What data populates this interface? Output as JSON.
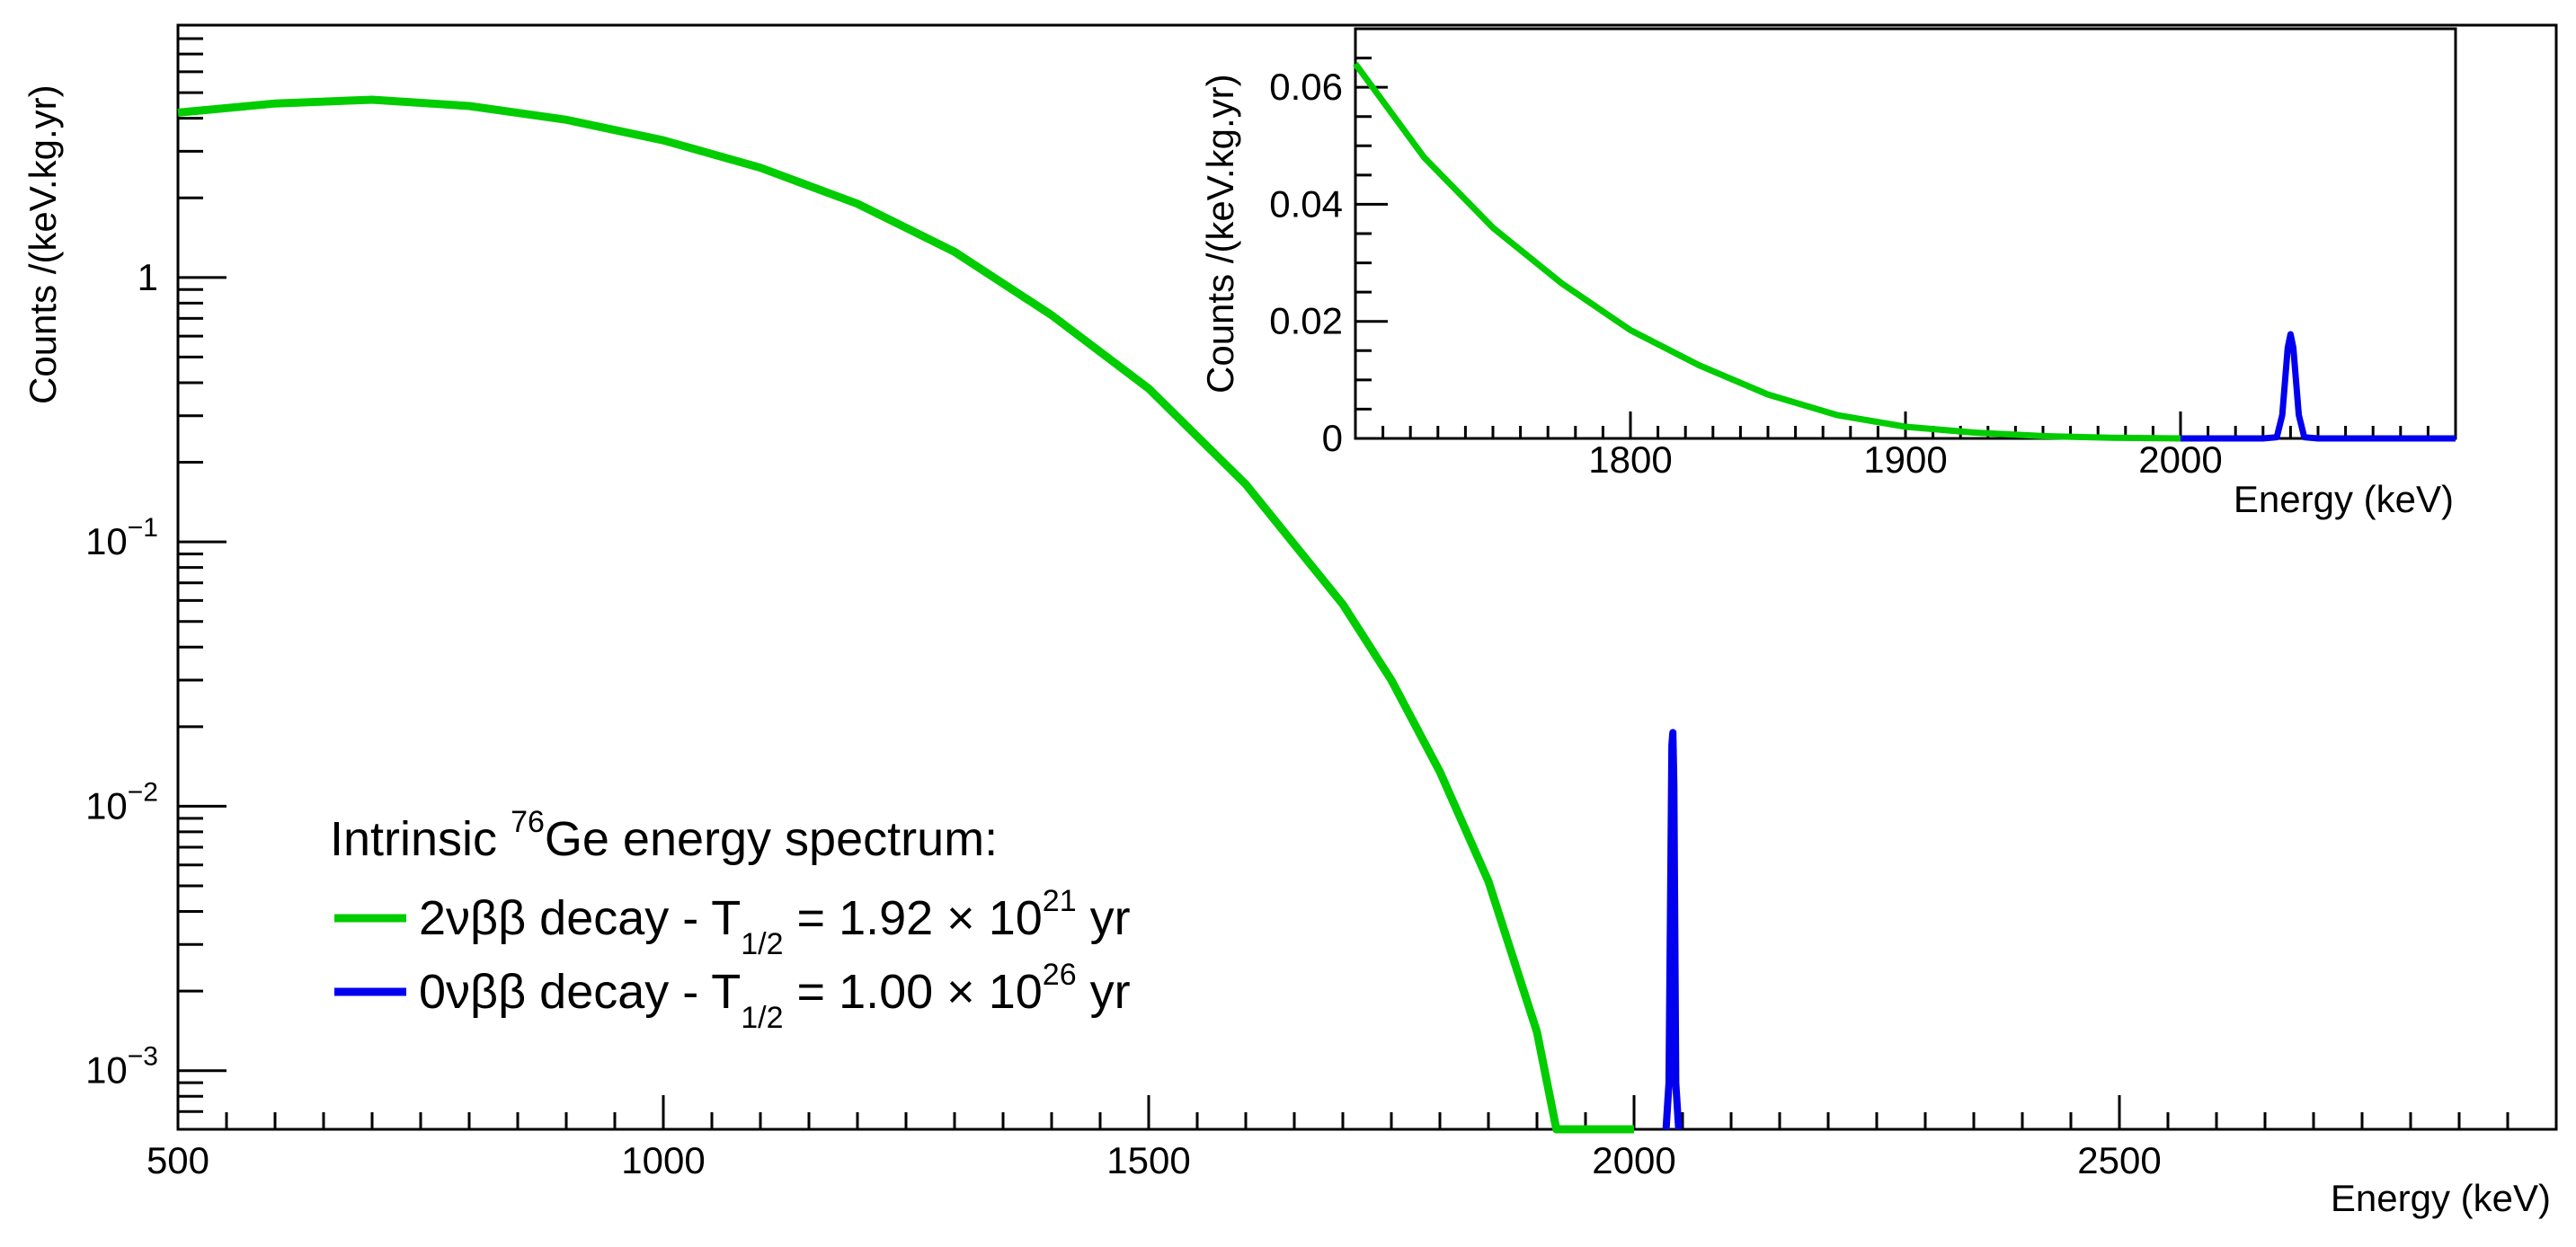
{
  "chart_data": [
    {
      "type": "line",
      "scale": "log-y",
      "xlabel": "Energy (keV)",
      "ylabel": "Counts /(keV.kg.yr)",
      "xlim": [
        500,
        2950
      ],
      "ylim": [
        0.0006,
        9
      ],
      "x_ticks": [
        500,
        1000,
        1500,
        2000,
        2500
      ],
      "y_ticks": [
        {
          "value": 1,
          "base": "1",
          "exp": ""
        },
        {
          "value": 0.1,
          "base": "10",
          "exp": "−1"
        },
        {
          "value": 0.01,
          "base": "10",
          "exp": "−2"
        },
        {
          "value": 0.001,
          "base": "10",
          "exp": "−3"
        }
      ],
      "legend": {
        "position": "lower-left",
        "title_prefix": "Intrinsic ",
        "title_sup": "76",
        "title_rest": "Ge energy spectrum:",
        "entries": [
          {
            "label_main": "2νββ decay - T",
            "sub": "1/2",
            "label_mid": " = 1.92 × 10",
            "sup": "21",
            "label_end": " yr",
            "color": "#00cc00"
          },
          {
            "label_main": "0νββ decay - T",
            "sub": "1/2",
            "label_mid": " = 1.00 × 10",
            "sup": "26",
            "label_end": " yr",
            "color": "#0000ee"
          }
        ]
      },
      "series": [
        {
          "name": "2νββ decay",
          "color": "#00cc00",
          "x": [
            500,
            600,
            700,
            800,
            900,
            1000,
            1100,
            1200,
            1300,
            1400,
            1500,
            1600,
            1700,
            1750,
            1800,
            1850,
            1900,
            1920,
            2000
          ],
          "y": [
            4.2,
            4.55,
            4.7,
            4.45,
            3.95,
            3.3,
            2.6,
            1.9,
            1.25,
            0.72,
            0.38,
            0.165,
            0.058,
            0.03,
            0.0135,
            0.0052,
            0.0014,
            0.0006,
            0.0006
          ]
        },
        {
          "name": "0νββ decay",
          "color": "#0000ee",
          "x": [
            2033,
            2036,
            2038,
            2039,
            2040,
            2041,
            2043,
            2046
          ],
          "y": [
            0.0006,
            0.0009,
            0.006,
            0.017,
            0.019,
            0.012,
            0.0009,
            0.0006
          ]
        }
      ]
    },
    {
      "type": "line",
      "scale": "linear",
      "role": "inset",
      "xlabel": "Energy (keV)",
      "ylabel": "Counts /(keV.kg.yr)",
      "xlim": [
        1700,
        2100
      ],
      "ylim": [
        0,
        0.07
      ],
      "x_ticks": [
        1800,
        1900,
        2000
      ],
      "y_ticks": [
        {
          "value": 0,
          "label": "0"
        },
        {
          "value": 0.02,
          "label": "0.02"
        },
        {
          "value": 0.04,
          "label": "0.04"
        },
        {
          "value": 0.06,
          "label": "0.06"
        }
      ],
      "series": [
        {
          "name": "2νββ decay",
          "color": "#00cc00",
          "x": [
            1700,
            1725,
            1750,
            1775,
            1800,
            1825,
            1850,
            1875,
            1900,
            1925,
            1950,
            1975,
            2000
          ],
          "y": [
            0.064,
            0.048,
            0.036,
            0.0265,
            0.0185,
            0.0125,
            0.0075,
            0.004,
            0.002,
            0.001,
            0.0004,
            0.0001,
            0.0
          ]
        },
        {
          "name": "0νββ decay",
          "color": "#0000ee",
          "x": [
            2000,
            2030,
            2035,
            2037,
            2039,
            2040,
            2041,
            2043,
            2045,
            2050,
            2100
          ],
          "y": [
            0,
            0,
            0.0002,
            0.004,
            0.0155,
            0.0178,
            0.0155,
            0.004,
            0.0002,
            0,
            0
          ]
        }
      ]
    }
  ]
}
